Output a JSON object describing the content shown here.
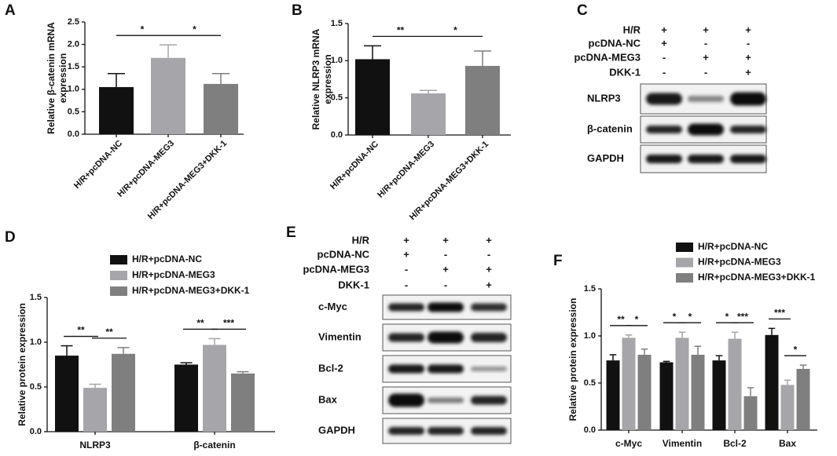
{
  "chart_data": [
    {
      "type": "bar",
      "panel": "A",
      "ylabel": [
        "Relative β-catenin mRNA",
        "expression"
      ],
      "categories": [
        "H/R+pcDNA-NC",
        "H/R+pcDNA-MEG3",
        "H/R+pcDNA-MEG3+DKK-1"
      ],
      "values": [
        1.05,
        1.7,
        1.12
      ],
      "errors": [
        0.3,
        0.29,
        0.23
      ],
      "colors": [
        "#111111",
        "#a6a6aa",
        "#7f7f7f"
      ],
      "ylim": [
        0,
        2.5
      ],
      "yticks": [
        {
          "value": 0,
          "label": "0.0"
        },
        0.5,
        {
          "value": 1,
          "label": "1.0"
        },
        1.5,
        {
          "value": 2,
          "label": "2.0"
        },
        2.5
      ],
      "annotations": [
        {
          "text": "*",
          "between": [
            "H/R+pcDNA-NC",
            "H/R+pcDNA-MEG3"
          ]
        },
        {
          "text": "*",
          "between": [
            "H/R+pcDNA-MEG3",
            "H/R+pcDNA-MEG3+DKK-1"
          ]
        }
      ]
    },
    {
      "type": "bar",
      "panel": "B",
      "ylabel": [
        "Relative NLRP3 mRNA",
        "expression"
      ],
      "categories": [
        "H/R+pcDNA-NC",
        "H/R+pcDNA-MEG3",
        "H/R+pcDNA-MEG3+DKK-1"
      ],
      "values": [
        1.02,
        0.56,
        0.93
      ],
      "errors": [
        0.18,
        0.04,
        0.2
      ],
      "colors": [
        "#111111",
        "#a6a6aa",
        "#7f7f7f"
      ],
      "ylim": [
        0,
        1.5
      ],
      "yticks": [
        {
          "value": 0,
          "label": "0.0"
        },
        0.5,
        {
          "value": 1,
          "label": "1.0"
        },
        1.5
      ],
      "annotations": [
        {
          "text": "**",
          "between": [
            "H/R+pcDNA-NC",
            "H/R+pcDNA-MEG3"
          ]
        },
        {
          "text": "*",
          "between": [
            "H/R+pcDNA-MEG3",
            "H/R+pcDNA-MEG3+DKK-1"
          ]
        }
      ]
    },
    {
      "type": "grouped-bar",
      "panel": "D",
      "ylabel": [
        "Relative protein expression"
      ],
      "categories": [
        "NLRP3",
        "β-catenin"
      ],
      "series": [
        {
          "name": "H/R+pcDNA-NC",
          "color": "#111111",
          "values": [
            0.85,
            0.75
          ],
          "errors": [
            0.11,
            0.02
          ]
        },
        {
          "name": "H/R+pcDNA-MEG3",
          "color": "#a6a6aa",
          "values": [
            0.49,
            0.97
          ],
          "errors": [
            0.04,
            0.07
          ]
        },
        {
          "name": "H/R+pcDNA-MEG3+DKK-1",
          "color": "#7f7f7f",
          "values": [
            0.87,
            0.65
          ],
          "errors": [
            0.07,
            0.02
          ]
        }
      ],
      "ylim": [
        0,
        1.5
      ],
      "yticks": [
        {
          "value": 0,
          "label": "0.0"
        },
        0.5,
        {
          "value": 1,
          "label": "1.0"
        },
        1.5
      ],
      "annotations": [
        {
          "text": "**",
          "category": "NLRP3",
          "between": [
            "H/R+pcDNA-NC",
            "H/R+pcDNA-MEG3"
          ]
        },
        {
          "text": "**",
          "category": "NLRP3",
          "between": [
            "H/R+pcDNA-MEG3",
            "H/R+pcDNA-MEG3+DKK-1"
          ]
        },
        {
          "text": "**",
          "category": "β-catenin",
          "between": [
            "H/R+pcDNA-NC",
            "H/R+pcDNA-MEG3"
          ]
        },
        {
          "text": "***",
          "category": "β-catenin",
          "between": [
            "H/R+pcDNA-MEG3",
            "H/R+pcDNA-MEG3+DKK-1"
          ]
        }
      ]
    },
    {
      "type": "grouped-bar",
      "panel": "F",
      "ylabel": [
        "Relative protein expression"
      ],
      "categories": [
        "c-Myc",
        "Vimentin",
        "Bcl-2",
        "Bax"
      ],
      "series": [
        {
          "name": "H/R+pcDNA-NC",
          "color": "#111111",
          "values": [
            0.74,
            0.72,
            0.74,
            1.01
          ],
          "errors": [
            0.06,
            0.01,
            0.05,
            0.07
          ]
        },
        {
          "name": "H/R+pcDNA-MEG3",
          "color": "#a6a6aa",
          "values": [
            0.98,
            0.98,
            0.97,
            0.48
          ],
          "errors": [
            0.03,
            0.06,
            0.07,
            0.05
          ]
        },
        {
          "name": "H/R+pcDNA-MEG3+DKK-1",
          "color": "#7f7f7f",
          "values": [
            0.8,
            0.8,
            0.36,
            0.65
          ],
          "errors": [
            0.06,
            0.09,
            0.09,
            0.04
          ]
        }
      ],
      "ylim": [
        0,
        1.5
      ],
      "yticks": [
        {
          "value": 0,
          "label": "0.0"
        },
        0.5,
        {
          "value": 1,
          "label": "1.0"
        },
        1.5
      ],
      "annotations": [
        {
          "text": "**",
          "category": "c-Myc",
          "between": [
            "H/R+pcDNA-NC",
            "H/R+pcDNA-MEG3"
          ]
        },
        {
          "text": "*",
          "category": "c-Myc",
          "between": [
            "H/R+pcDNA-MEG3",
            "H/R+pcDNA-MEG3+DKK-1"
          ]
        },
        {
          "text": "*",
          "category": "Vimentin",
          "between": [
            "H/R+pcDNA-NC",
            "H/R+pcDNA-MEG3"
          ]
        },
        {
          "text": "*",
          "category": "Vimentin",
          "between": [
            "H/R+pcDNA-MEG3",
            "H/R+pcDNA-MEG3+DKK-1"
          ]
        },
        {
          "text": "*",
          "category": "Bcl-2",
          "between": [
            "H/R+pcDNA-NC",
            "H/R+pcDNA-MEG3"
          ]
        },
        {
          "text": "***",
          "category": "Bcl-2",
          "between": [
            "H/R+pcDNA-MEG3",
            "H/R+pcDNA-MEG3+DKK-1"
          ]
        },
        {
          "text": "***",
          "category": "Bax",
          "between": [
            "H/R+pcDNA-NC",
            "H/R+pcDNA-MEG3"
          ]
        },
        {
          "text": "*",
          "category": "Bax",
          "between": [
            "H/R+pcDNA-MEG3",
            "H/R+pcDNA-MEG3+DKK-1"
          ]
        }
      ]
    }
  ],
  "blots": [
    {
      "panel": "C",
      "conditions": [
        {
          "label": "H/R",
          "signs": [
            "+",
            "+",
            "+"
          ]
        },
        {
          "label": "pcDNA-NC",
          "signs": [
            "+",
            "-",
            "-"
          ]
        },
        {
          "label": "pcDNA-MEG3",
          "signs": [
            "-",
            "+",
            "+"
          ]
        },
        {
          "label": "DKK-1",
          "signs": [
            "-",
            "-",
            "+"
          ]
        }
      ],
      "bands": [
        "NLRP3",
        "β-catenin",
        "GAPDH"
      ]
    },
    {
      "panel": "E",
      "conditions": [
        {
          "label": "H/R",
          "signs": [
            "+",
            "+",
            "+"
          ]
        },
        {
          "label": "pcDNA-NC",
          "signs": [
            "+",
            "-",
            "-"
          ]
        },
        {
          "label": "pcDNA-MEG3",
          "signs": [
            "-",
            "+",
            "+"
          ]
        },
        {
          "label": "DKK-1",
          "signs": [
            "-",
            "-",
            "+"
          ]
        }
      ],
      "bands": [
        "c-Myc",
        "Vimentin",
        "Bcl-2",
        "Bax",
        "GAPDH"
      ]
    }
  ]
}
